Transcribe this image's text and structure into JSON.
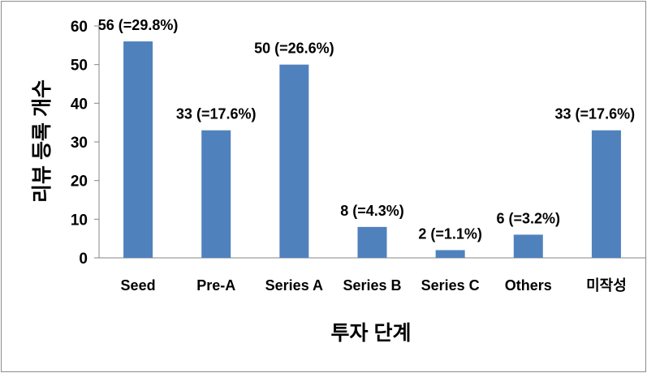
{
  "chart_data": {
    "type": "bar",
    "title": "",
    "xlabel": "투자 단계",
    "ylabel": "리뷰 등록 개수",
    "ylim": [
      0,
      60
    ],
    "yticks": [
      0,
      10,
      20,
      30,
      40,
      50,
      60
    ],
    "grid": false,
    "legend": "none",
    "bar_color": "#4f81bd",
    "categories": [
      "Seed",
      "Pre-A",
      "Series A",
      "Series B",
      "Series C",
      "Others",
      "미작성"
    ],
    "values": [
      56,
      33,
      50,
      8,
      2,
      6,
      33
    ],
    "data_labels": [
      "56 (=29.8%)",
      "33 (=17.6%)",
      "50 (=26.6%)",
      "8 (=4.3%)",
      "2 (=1.1%)",
      "6 (=3.2%)",
      "33 (=17.6%)"
    ]
  }
}
